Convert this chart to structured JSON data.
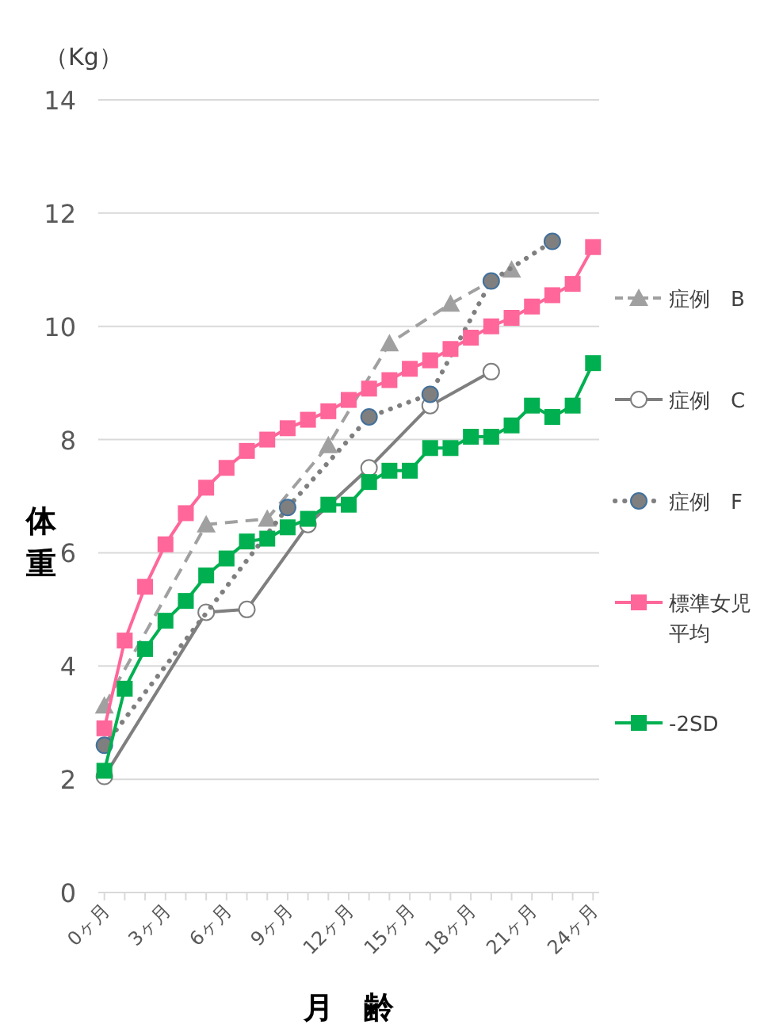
{
  "chart_data": {
    "type": "line",
    "ylabel": "体重",
    "xlabel": "月　齢",
    "annotations": [
      "（Kg）"
    ],
    "xlim": [
      -0.3,
      24.3
    ],
    "xticks": [
      {
        "value": 0,
        "label": "0ヶ月"
      },
      {
        "value": 1,
        "label": null
      },
      {
        "value": 2,
        "label": null
      },
      {
        "value": 3,
        "label": "3ヶ月"
      },
      {
        "value": 4,
        "label": null
      },
      {
        "value": 5,
        "label": null
      },
      {
        "value": 6,
        "label": "6ヶ月"
      },
      {
        "value": 7,
        "label": null
      },
      {
        "value": 8,
        "label": null
      },
      {
        "value": 9,
        "label": "9ヶ月"
      },
      {
        "value": 10,
        "label": null
      },
      {
        "value": 11,
        "label": null
      },
      {
        "value": 12,
        "label": "12ヶ月"
      },
      {
        "value": 13,
        "label": null
      },
      {
        "value": 14,
        "label": null
      },
      {
        "value": 15,
        "label": "15ヶ月"
      },
      {
        "value": 16,
        "label": null
      },
      {
        "value": 17,
        "label": null
      },
      {
        "value": 18,
        "label": "18ヶ月"
      },
      {
        "value": 19,
        "label": null
      },
      {
        "value": 20,
        "label": null
      },
      {
        "value": 21,
        "label": "21ヶ月"
      },
      {
        "value": 22,
        "label": null
      },
      {
        "value": 23,
        "label": null
      },
      {
        "value": 24,
        "label": "24ヶ月"
      }
    ],
    "ylim": [
      0,
      14
    ],
    "yticks": [
      0,
      2,
      4,
      6,
      8,
      10,
      12,
      14
    ],
    "grid": "y",
    "legend": "right",
    "series": [
      {
        "name": "症例　B",
        "color": "#a0a0a0",
        "marker": "triangle",
        "line_style": "dashed",
        "x": [
          0,
          5,
          8,
          11,
          14,
          17,
          20
        ],
        "values": [
          3.3,
          6.5,
          6.6,
          7.9,
          9.7,
          10.4,
          11.0
        ]
      },
      {
        "name": "症例　C",
        "color": "#7f7f7f",
        "marker": "circle_open",
        "line_style": "solid",
        "x": [
          0,
          5,
          7,
          10,
          13,
          16,
          19
        ],
        "values": [
          2.05,
          4.95,
          5.0,
          6.5,
          7.5,
          8.6,
          9.2
        ]
      },
      {
        "name": "症例　F",
        "color": "#7f7f7f",
        "marker": "circle",
        "line_style": "dotted",
        "x": [
          0,
          9,
          13,
          16,
          19,
          22
        ],
        "values": [
          2.6,
          6.8,
          8.4,
          8.8,
          10.8,
          11.5
        ]
      },
      {
        "name": "標準女児平均",
        "color": "#ff6699",
        "marker": "square",
        "line_style": "solid",
        "x": [
          0,
          1,
          2,
          3,
          4,
          5,
          6,
          7,
          8,
          9,
          10,
          11,
          12,
          13,
          14,
          15,
          16,
          17,
          18,
          19,
          20,
          21,
          22,
          23,
          24
        ],
        "values": [
          2.9,
          4.45,
          5.4,
          6.15,
          6.7,
          7.15,
          7.5,
          7.8,
          8.0,
          8.2,
          8.35,
          8.5,
          8.7,
          8.9,
          9.05,
          9.25,
          9.4,
          9.6,
          9.8,
          10.0,
          10.15,
          10.35,
          10.55,
          10.75,
          11.4
        ]
      },
      {
        "name": "-2SD",
        "color": "#00b050",
        "marker": "square",
        "line_style": "solid",
        "x": [
          0,
          1,
          2,
          3,
          4,
          5,
          6,
          7,
          8,
          9,
          10,
          11,
          12,
          13,
          14,
          15,
          16,
          17,
          18,
          19,
          20,
          21,
          22,
          23,
          24
        ],
        "values": [
          2.15,
          3.6,
          4.3,
          4.8,
          5.15,
          5.6,
          5.9,
          6.2,
          6.25,
          6.45,
          6.6,
          6.85,
          6.85,
          7.25,
          7.45,
          7.45,
          7.85,
          7.85,
          8.05,
          8.05,
          8.25,
          8.6,
          8.4,
          8.6,
          9.35
        ]
      }
    ]
  }
}
